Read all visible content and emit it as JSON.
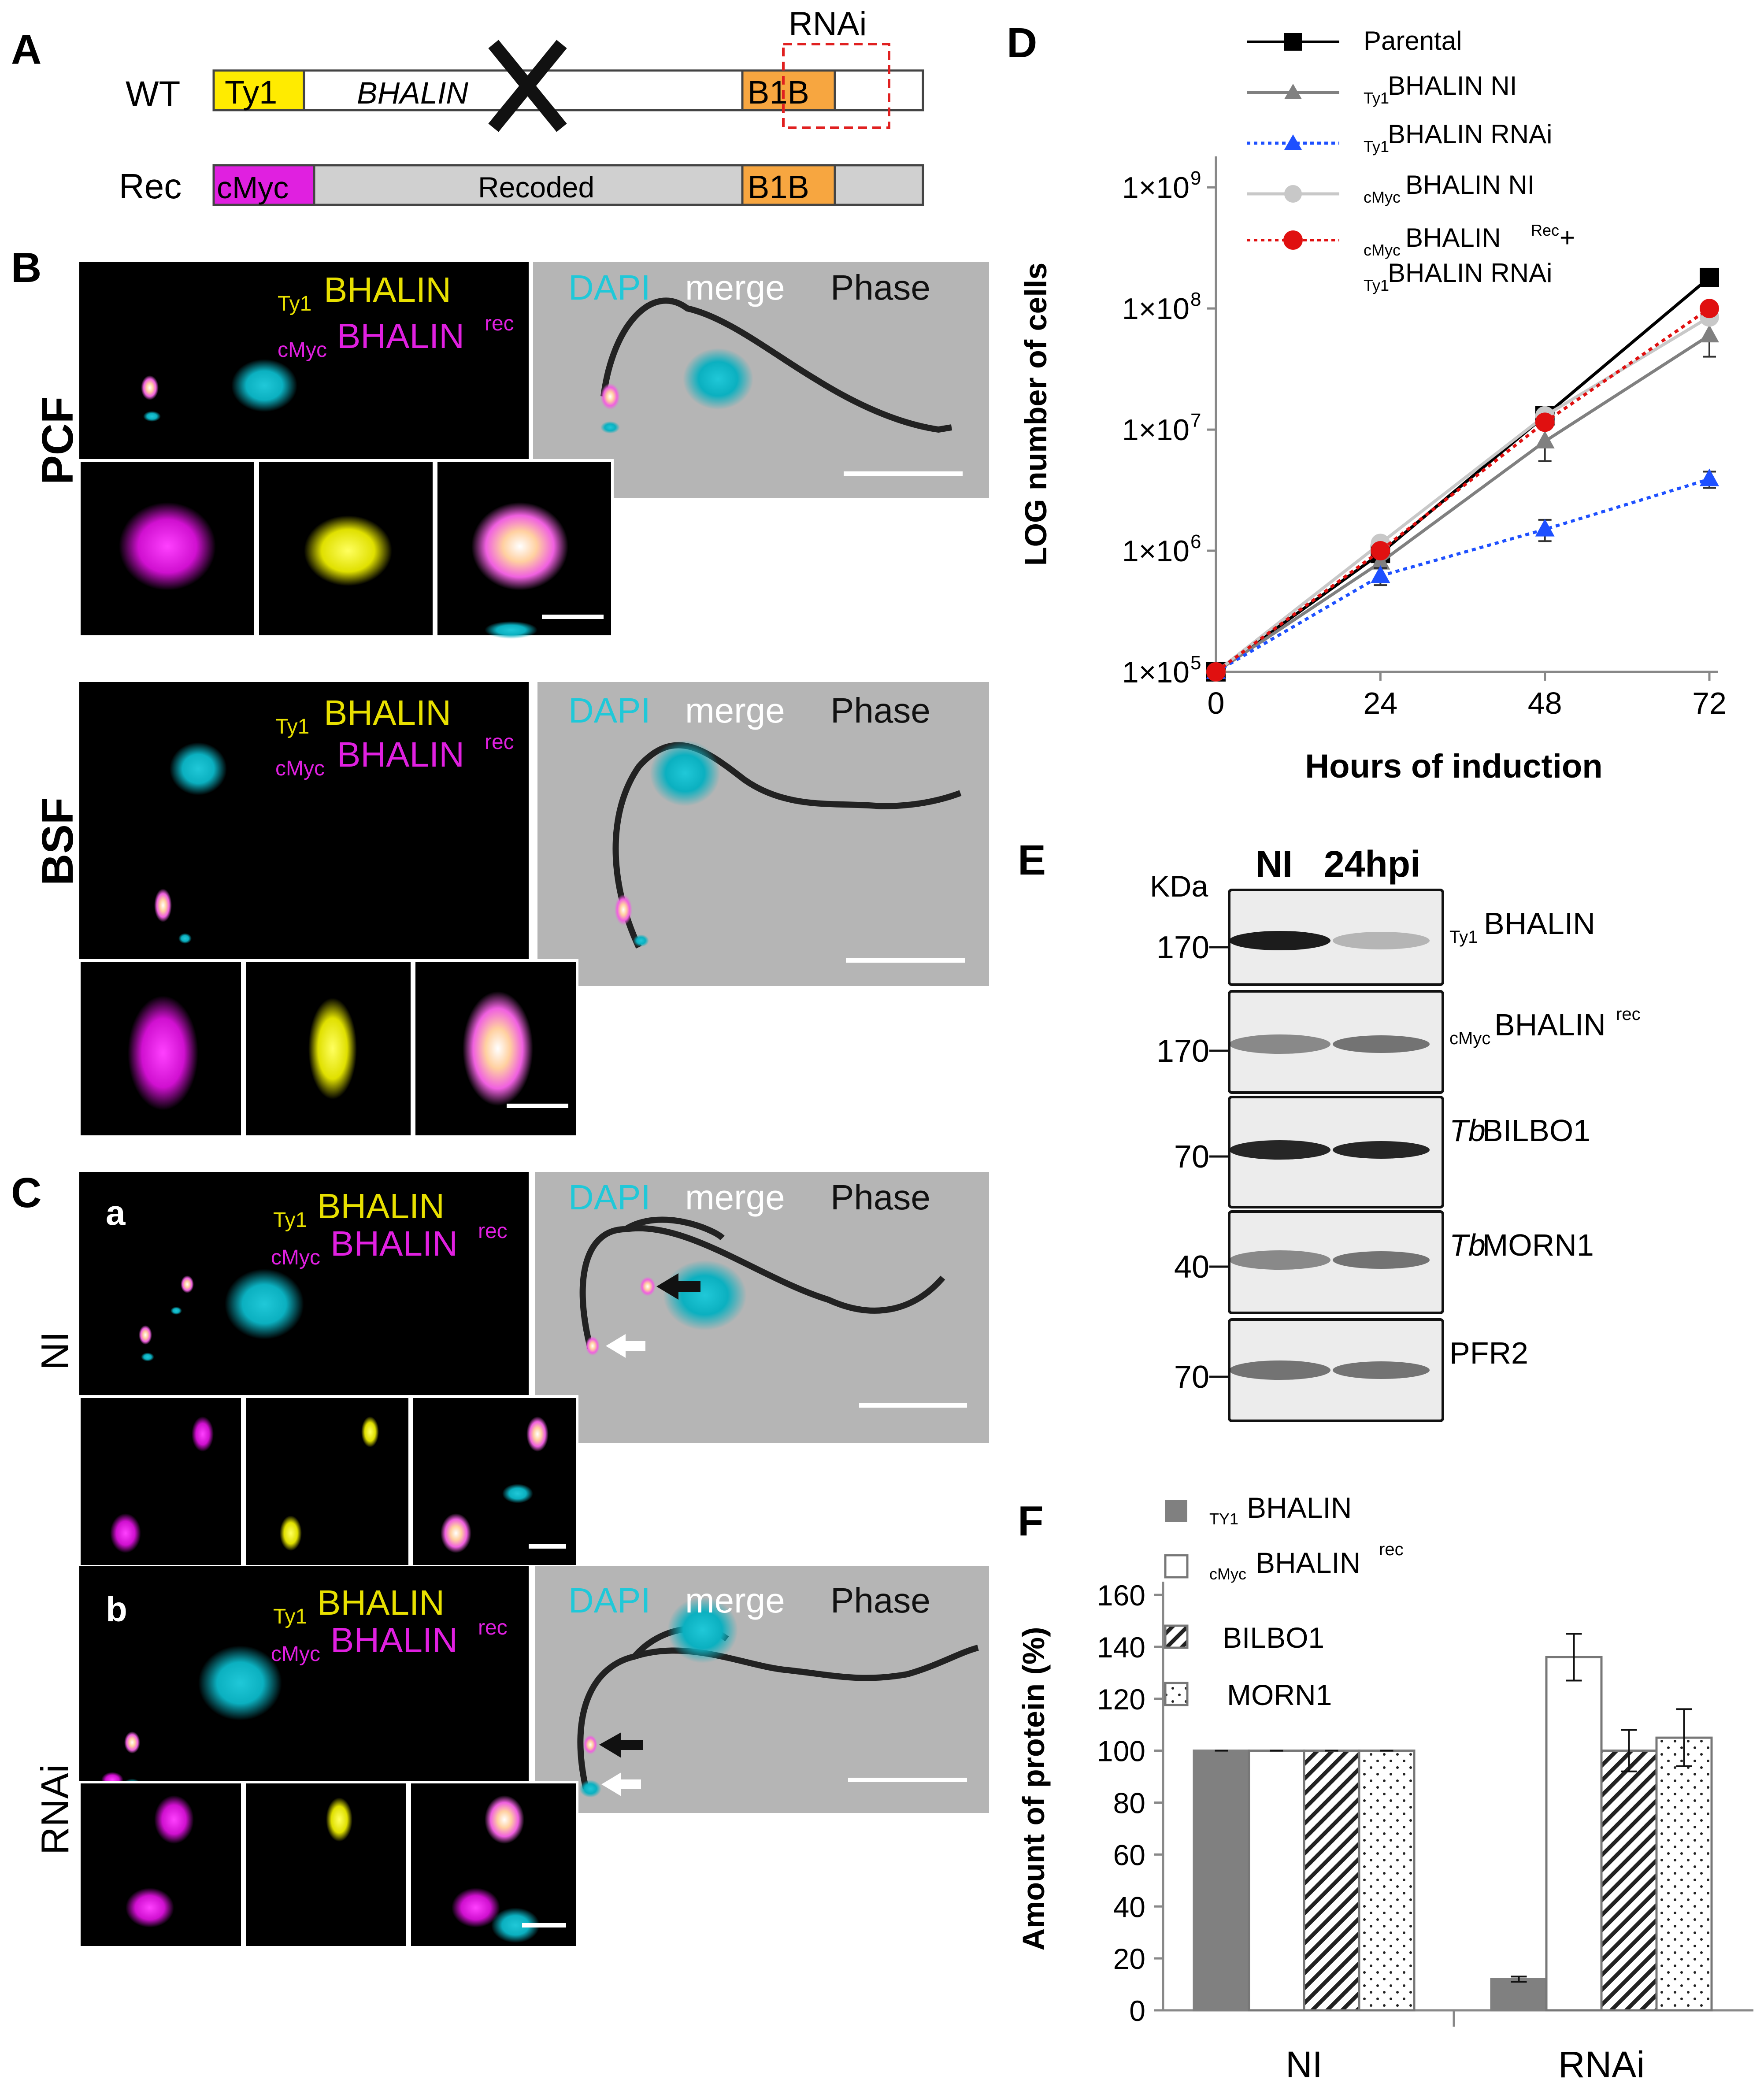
{
  "panels": {
    "A": {
      "letter": "A",
      "rnai": "RNAi",
      "wt_label": "WT",
      "rec_label": "Rec",
      "wt_tag": "Ty1",
      "wt_gene": "BHALIN",
      "b1b": "B1B",
      "rec_tag": "cMyc",
      "recoded": "Recoded",
      "colors": {
        "ty1": "#ffeb00",
        "cmyc": "#e020e0",
        "b1b": "#f7a640",
        "recoded": "#d0d0d0",
        "rnai_box": "#e02020"
      }
    },
    "B": {
      "letter": "B",
      "pcf": "PCF",
      "bsf": "BSF",
      "ty1_sub": "Ty1",
      "bhalin": "BHALIN",
      "cmyc_sub": "cMyc",
      "rec_sup": "rec",
      "dapi": "DAPI",
      "merge": "merge",
      "phase": "Phase"
    },
    "C": {
      "letter": "C",
      "a": "a",
      "b": "b",
      "ni": "NI",
      "rnai": "RNAi"
    },
    "D": {
      "letter": "D",
      "legend": [
        "Parental",
        "Ty1",
        "BHALIN NI",
        "Ty1",
        "BHALIN RNAi",
        "cMyc",
        "BHALIN NI",
        "cMyc",
        "BHALIN",
        "Rec",
        " +",
        "Ty1",
        "BHALIN RNAi"
      ]
    },
    "E": {
      "letter": "E",
      "kda": "KDa",
      "col_ni": "NI",
      "col_24": "24hpi",
      "blots": [
        {
          "marker": "170",
          "sub": "Ty1",
          "main": "BHALIN",
          "sup": ""
        },
        {
          "marker": "170",
          "sub": "cMyc",
          "main": "BHALIN",
          "sup": "rec"
        },
        {
          "marker": "70",
          "ital": "Tb",
          "main": "BILBO1"
        },
        {
          "marker": "40",
          "ital": "Tb",
          "main": "MORN1"
        },
        {
          "marker": "70",
          "main": "PFR2"
        }
      ]
    },
    "F": {
      "letter": "F",
      "legend": [
        "TY1",
        "BHALIN",
        "cMyc",
        "BHALIN",
        "rec",
        "BILBO1",
        "MORN1"
      ]
    }
  },
  "chart_data": [
    {
      "type": "line",
      "panel": "D",
      "title": "",
      "xlabel": "Hours of induction",
      "ylabel": "LOG number of cells",
      "yscale": "log",
      "x": [
        0,
        24,
        48,
        72
      ],
      "xticks": [
        "0",
        "24",
        "48",
        "72"
      ],
      "ylim": [
        100000,
        1000000000
      ],
      "yticks": [
        {
          "value": 1000000000,
          "label": "1×10",
          "exp": "9"
        },
        {
          "value": 100000000,
          "label": "1×10",
          "exp": "8"
        },
        {
          "value": 10000000,
          "label": "1×10",
          "exp": "7"
        },
        {
          "value": 1000000,
          "label": "1×10",
          "exp": "6"
        },
        {
          "value": 100000,
          "label": "1×10",
          "exp": "5"
        }
      ],
      "series": [
        {
          "name": "Parental",
          "color": "#000000",
          "marker": "square",
          "dash": "solid",
          "values": [
            100000,
            950000,
            13000000,
            180000000
          ],
          "errors": [
            0,
            0,
            0,
            0
          ]
        },
        {
          "name": "Ty1 BHALIN NI",
          "color": "#808080",
          "marker": "triangle",
          "dash": "solid",
          "values": [
            100000,
            800000,
            8000000,
            60000000
          ],
          "errors": [
            0,
            200000,
            2500000,
            20000000
          ]
        },
        {
          "name": "Ty1 BHALIN RNAi",
          "color": "#1e50ff",
          "marker": "triangle",
          "dash": "dotted",
          "values": [
            100000,
            620000,
            1500000,
            3900000
          ],
          "errors": [
            0,
            100000,
            300000,
            600000
          ]
        },
        {
          "name": "cMyc BHALIN NI",
          "color": "#c8c8c8",
          "marker": "circle",
          "dash": "solid",
          "values": [
            100000,
            1150000,
            13000000,
            85000000
          ],
          "errors": [
            0,
            0,
            0,
            0
          ]
        },
        {
          "name": "cMyc BHALIN Rec + Ty1 BHALIN RNAi",
          "color": "#e01010",
          "marker": "circle",
          "dash": "dotted",
          "values": [
            100000,
            1000000,
            11500000,
            100000000
          ],
          "errors": [
            0,
            0,
            0,
            0
          ]
        }
      ]
    },
    {
      "type": "bar",
      "panel": "F",
      "title": "",
      "xlabel": "",
      "ylabel": "Amount of protein (%)",
      "categories": [
        "NI",
        "RNAi"
      ],
      "ylim": [
        0,
        160
      ],
      "yticks": [
        "0",
        "20",
        "40",
        "60",
        "80",
        "100",
        "120",
        "140",
        "160"
      ],
      "series": [
        {
          "name": "Ty1 BHALIN",
          "fill": "solid-gray",
          "values": [
            100,
            12
          ],
          "errors": [
            0,
            1
          ]
        },
        {
          "name": "cMyc BHALIN rec",
          "fill": "white",
          "values": [
            100,
            136
          ],
          "errors": [
            0,
            9
          ]
        },
        {
          "name": "BILBO1",
          "fill": "hatched",
          "values": [
            100,
            100
          ],
          "errors": [
            0,
            8
          ]
        },
        {
          "name": "MORN1",
          "fill": "dotted",
          "values": [
            100,
            105
          ],
          "errors": [
            0,
            11
          ]
        }
      ]
    }
  ]
}
